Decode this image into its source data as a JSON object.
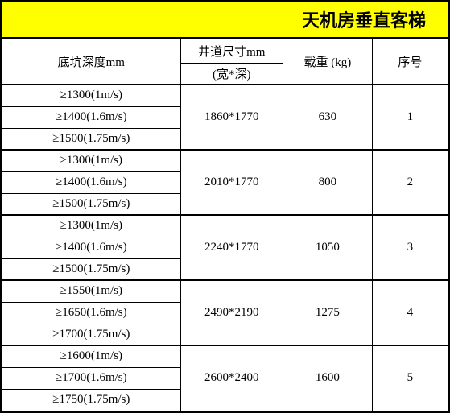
{
  "title": "天机房垂直客梯",
  "headers": {
    "depth": "底坑深度mm",
    "dim_top": "井道尺寸mm",
    "dim_sub": "(宽*深)",
    "load": "载重 (kg)",
    "seq": "序号"
  },
  "groups": [
    {
      "seq": "1",
      "load": "630",
      "dim": "1860*1770",
      "depths": [
        "≥1300(1m/s)",
        "≥1400(1.6m/s)",
        "≥1500(1.75m/s)"
      ]
    },
    {
      "seq": "2",
      "load": "800",
      "dim": "2010*1770",
      "depths": [
        "≥1300(1m/s)",
        "≥1400(1.6m/s)",
        "≥1500(1.75m/s)"
      ]
    },
    {
      "seq": "3",
      "load": "1050",
      "dim": "2240*1770",
      "depths": [
        "≥1300(1m/s)",
        "≥1400(1.6m/s)",
        "≥1500(1.75m/s)"
      ]
    },
    {
      "seq": "4",
      "load": "1275",
      "dim": "2490*2190",
      "depths": [
        "≥1550(1m/s)",
        "≥1650(1.6m/s)",
        "≥1700(1.75m/s)"
      ]
    },
    {
      "seq": "5",
      "load": "1600",
      "dim": "2600*2400",
      "depths": [
        "≥1600(1m/s)",
        "≥1700(1.6m/s)",
        "≥1750(1.75m/s)"
      ]
    }
  ]
}
